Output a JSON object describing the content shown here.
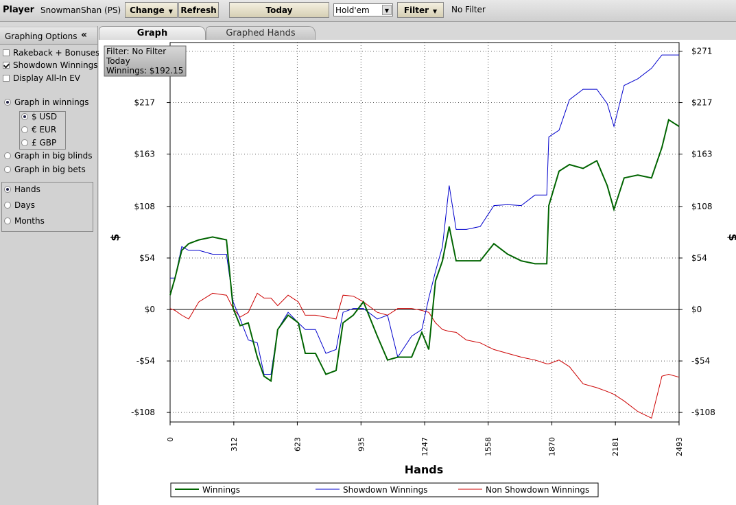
{
  "toolbar": {
    "player_label": "Player",
    "player_name": "SnowmanShan (PS)",
    "change": "Change",
    "refresh": "Refresh",
    "period": "Today",
    "game": "Hold'em",
    "filter": "Filter",
    "filter_status": "No Filter"
  },
  "sidebar": {
    "title": "Graphing Options",
    "collapse": "«",
    "options": [
      {
        "label": "Rakeback + Bonuses",
        "checked": false
      },
      {
        "label": "Showdown Winnings",
        "checked": true
      },
      {
        "label": "Display All-In EV",
        "checked": false
      }
    ],
    "units": [
      {
        "label": "Graph in winnings",
        "selected": true
      },
      {
        "label": "Graph in big blinds",
        "selected": false
      },
      {
        "label": "Graph in big bets",
        "selected": false
      }
    ],
    "currencies": [
      {
        "label": "$ USD",
        "selected": true
      },
      {
        "label": "€ EUR",
        "selected": false
      },
      {
        "label": "£ GBP",
        "selected": false
      }
    ],
    "x_modes": [
      {
        "label": "Hands",
        "selected": true
      },
      {
        "label": "Days",
        "selected": false
      },
      {
        "label": "Months",
        "selected": false
      }
    ]
  },
  "tabs": [
    "Graph",
    "Graphed Hands"
  ],
  "chart_data": {
    "type": "line",
    "x_label": "Hands",
    "y_label": "$",
    "annotation": [
      "Filter: No Filter",
      "Today",
      "Winnings: $192.15"
    ],
    "x": [
      0,
      24,
      57,
      91,
      141,
      208,
      276,
      309,
      343,
      383,
      427,
      460,
      494,
      527,
      578,
      628,
      662,
      712,
      763,
      813,
      847,
      897,
      947,
      1015,
      1065,
      1115,
      1183,
      1233,
      1267,
      1300,
      1334,
      1367,
      1401,
      1451,
      1519,
      1586,
      1653,
      1720,
      1787,
      1845,
      1855,
      1905,
      1956,
      2023,
      2090,
      2141,
      2174,
      2224,
      2291,
      2358,
      2409,
      2442,
      2493
    ],
    "series": [
      {
        "name": "Winnings",
        "color": "#006400",
        "width": 2,
        "values": [
          15,
          33,
          62,
          69,
          73,
          76,
          73,
          1,
          -17,
          -14,
          -50,
          -70,
          -75,
          -21,
          -6,
          -14,
          -46,
          -46,
          -68,
          -64,
          -14,
          -6,
          8,
          -28,
          -53,
          -50,
          -50,
          -24,
          -42,
          30,
          51,
          87,
          51,
          51,
          51,
          69,
          58,
          51,
          48,
          48,
          109,
          145,
          152,
          148,
          156,
          130,
          105,
          138,
          141,
          138,
          170,
          199,
          192
        ]
      },
      {
        "name": "Showdown Winnings",
        "color": "#0000cc",
        "width": 1,
        "values": [
          33,
          33,
          66,
          62,
          62,
          58,
          58,
          8,
          -10,
          -32,
          -35,
          -68,
          -68,
          -21,
          -3,
          -14,
          -21,
          -21,
          -46,
          -42,
          -3,
          1,
          1,
          -10,
          -6,
          -50,
          -28,
          -21,
          12,
          40,
          66,
          130,
          84,
          84,
          87,
          109,
          110,
          109,
          120,
          120,
          181,
          188,
          220,
          231,
          231,
          216,
          192,
          235,
          242,
          253,
          267,
          267,
          267
        ]
      },
      {
        "name": "Non Showdown Winnings",
        "color": "#cc0000",
        "width": 1,
        "values": [
          1,
          -1,
          -6,
          -10,
          8,
          17,
          15,
          1,
          -8,
          -3,
          17,
          12,
          12,
          4,
          15,
          8,
          -6,
          -6,
          -8,
          -10,
          15,
          14,
          8,
          -3,
          -6,
          1,
          1,
          -1,
          -3,
          -14,
          -21,
          -23,
          -24,
          -32,
          -35,
          -42,
          -46,
          -50,
          -53,
          -57,
          -57,
          -53,
          -60,
          -78,
          -82,
          -86,
          -89,
          -96,
          -107,
          -114,
          -70,
          -68,
          -71
        ]
      }
    ],
    "xlim": [
      0,
      2493
    ],
    "xticks": [
      0,
      312,
      623,
      935,
      1247,
      1558,
      1870,
      2181,
      2493
    ],
    "ylim": [
      -118,
      280
    ],
    "yticks": [
      {
        "value": -108,
        "label": "-$108"
      },
      {
        "value": -54,
        "label": "-$54"
      },
      {
        "value": 0,
        "label": "$0"
      },
      {
        "value": 54,
        "label": "$54"
      },
      {
        "value": 108,
        "label": "$108"
      },
      {
        "value": 163,
        "label": "$163"
      },
      {
        "value": 217,
        "label": "$217"
      },
      {
        "value": 271,
        "label": "$271"
      }
    ],
    "grid": true
  }
}
